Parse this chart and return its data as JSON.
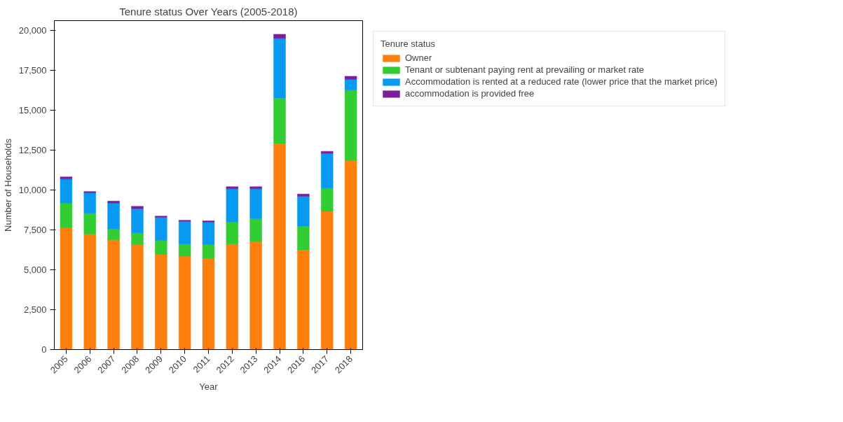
{
  "chart_data": {
    "type": "bar",
    "stacked": true,
    "title": "Tenure status Over Years (2005-2018)",
    "xlabel": "Year",
    "ylabel": "Number of Households",
    "legend_title": "Tenure status",
    "legend": "right",
    "grid": false,
    "categories": [
      "2005",
      "2006",
      "2007",
      "2008",
      "2009",
      "2010",
      "2011",
      "2012",
      "2013",
      "2014",
      "2016",
      "2017",
      "2018"
    ],
    "ylim": [
      0,
      20600
    ],
    "yticks": [
      0,
      {
        "value": 2500,
        "label": "2,500"
      },
      {
        "value": 5000,
        "label": "5,000"
      },
      {
        "value": 7500,
        "label": "7,500"
      },
      {
        "value": 10000,
        "label": "10,000"
      },
      {
        "value": 12500,
        "label": "12,500"
      },
      {
        "value": 15000,
        "label": "15,000"
      },
      {
        "value": 17500,
        "label": "17,500"
      },
      {
        "value": 20000,
        "label": "20,000"
      }
    ],
    "series": [
      {
        "name": "Owner",
        "color": "#ff7f0e",
        "values": [
          7630,
          7230,
          6880,
          6570,
          5980,
          5850,
          5720,
          6610,
          6750,
          12900,
          6240,
          8660,
          11860
        ]
      },
      {
        "name": "Tenant or subtenant paying rent at prevailing or market rate",
        "color": "#32cd32",
        "values": [
          1550,
          1310,
          670,
          740,
          850,
          760,
          850,
          1370,
          1450,
          2850,
          1490,
          1450,
          4400
        ]
      },
      {
        "name": "Accommodation is rented at a reduced rate (lower price that the market price)",
        "color": "#069af3",
        "values": [
          1500,
          1280,
          1630,
          1510,
          1450,
          1420,
          1410,
          2090,
          1870,
          3740,
          1870,
          2180,
          660
        ]
      },
      {
        "name": "accommodation is provided free",
        "color": "#7e1e9c",
        "values": [
          140,
          80,
          120,
          150,
          80,
          70,
          90,
          130,
          130,
          260,
          140,
          130,
          200
        ]
      }
    ]
  }
}
